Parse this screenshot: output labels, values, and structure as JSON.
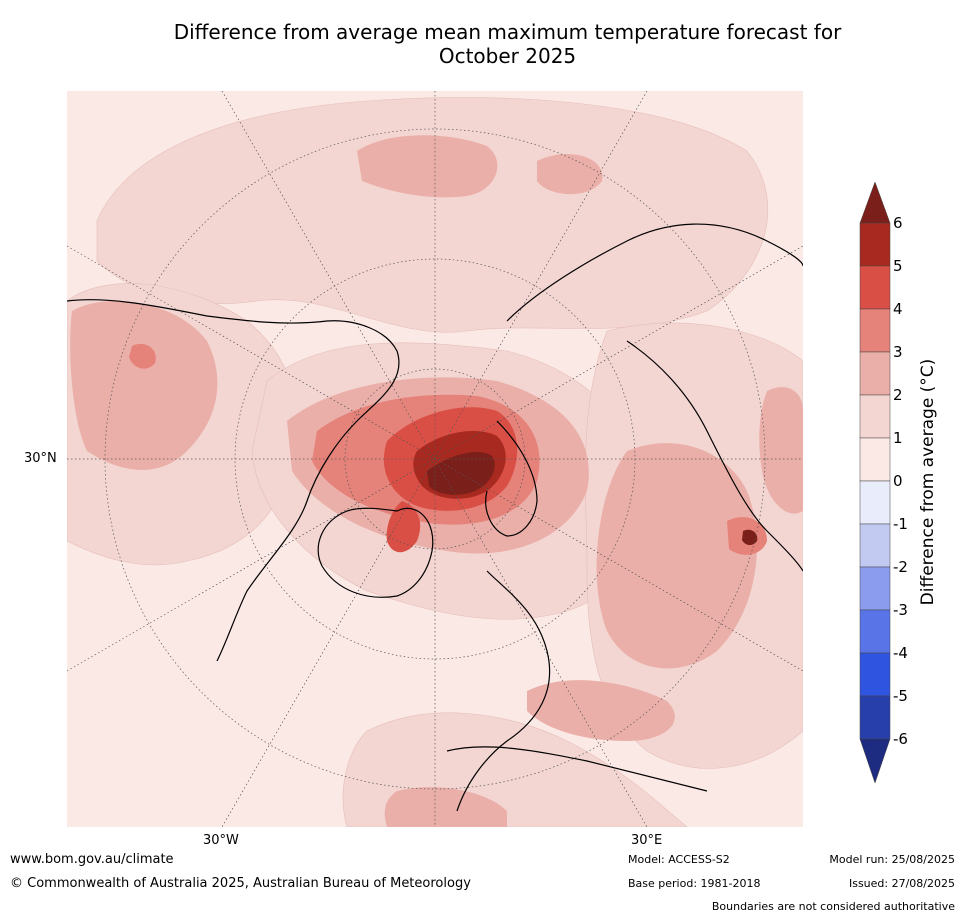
{
  "title_line1": "Difference from average mean maximum temperature forecast for",
  "title_line2": "October 2025",
  "map": {
    "lat_label": "30°N",
    "lon_west_label": "30°W",
    "lon_east_label": "30°E"
  },
  "colorbar": {
    "label": "Difference from average (°C)",
    "ticks": [
      "6",
      "5",
      "4",
      "3",
      "2",
      "1",
      "0",
      "-1",
      "-2",
      "-3",
      "-4",
      "-5",
      "-6"
    ],
    "colors": {
      "above6": "#7a1f1a",
      "5to6": "#a8291f",
      "4to5": "#d94f45",
      "3to4": "#e5827a",
      "2to3": "#ebafa9",
      "1to2": "#f3d6d2",
      "0to1": "#fbe9e6",
      "m1to0": "#e8ecfb",
      "m2tom1": "#c3caf2",
      "m3tom2": "#8b9cee",
      "m4tom3": "#5874e6",
      "m5tom4": "#2f55e0",
      "m6tom5": "#263faa",
      "belowm6": "#1d2b80"
    }
  },
  "footer": {
    "website": "www.bom.gov.au/climate",
    "copyright": "© Commonwealth of Australia 2025, Australian Bureau of Meteorology",
    "model": "Model: ACCESS-S2",
    "base_period": "Base period: 1981-2018",
    "model_run": "Model run: 25/08/2025",
    "issued": "Issued: 27/08/2025",
    "disclaimer": "Boundaries are not considered authoritative"
  }
}
